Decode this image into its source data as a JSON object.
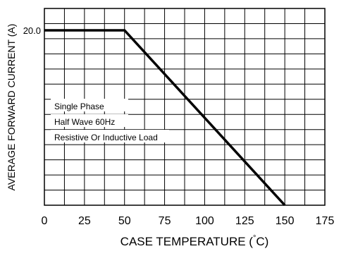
{
  "chart_data": {
    "type": "line",
    "title": "",
    "xlabel": "CASE TEMPERATURE (",
    "xlabel_unit": "C)",
    "ylabel": "AVERAGE FORWARD CURRENT (A)",
    "xlim": [
      0,
      175
    ],
    "x_ticks": [
      "0",
      "25",
      "50",
      "75",
      "100",
      "125",
      "150",
      "175"
    ],
    "ylim": [
      0,
      22.5
    ],
    "y_ticks": [
      {
        "value": 20.0,
        "label": "20.0"
      }
    ],
    "grid": true,
    "series": [
      {
        "x": [
          0,
          50,
          150
        ],
        "y": [
          20.0,
          20.0,
          0
        ],
        "color": "#000000"
      }
    ],
    "annotations": [
      "Single Phase",
      "Half Wave 60Hz",
      "Resistive Or Inductive Load"
    ]
  }
}
